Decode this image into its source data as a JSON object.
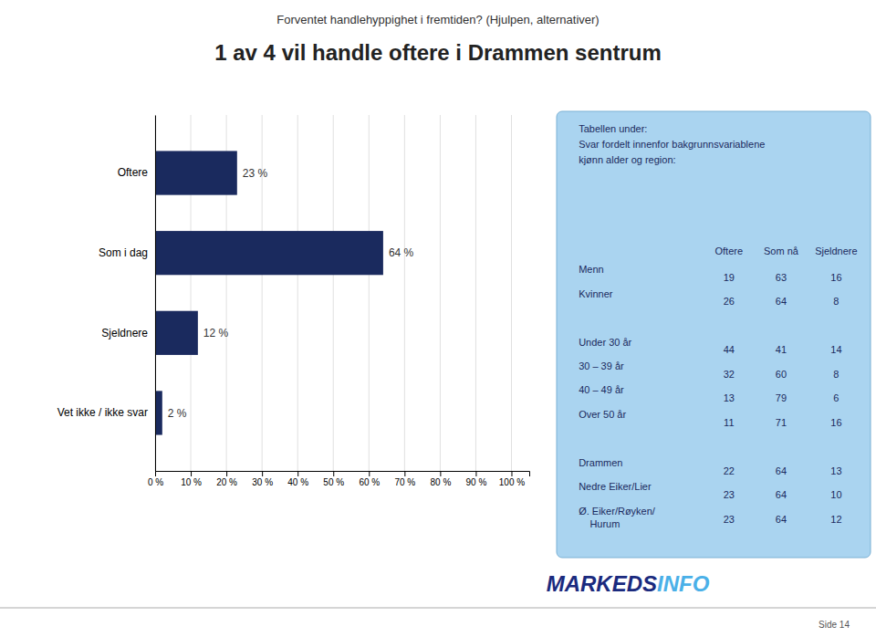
{
  "chart_data": [
    {
      "type": "bar",
      "title": "1 av 4 vil handle oftere i Drammen sentrum",
      "subtitle": "Forventet handlehyppighet i fremtiden? (Hjulpen, alternativer)",
      "orientation": "horizontal",
      "categories": [
        "Oftere",
        "Som i dag",
        "Sjeldnere",
        "Vet ikke / ikke svar"
      ],
      "values": [
        23,
        64,
        12,
        2
      ],
      "value_labels": [
        "23 %",
        "64 %",
        "12 %",
        "2 %"
      ],
      "data_labels": true,
      "color": "#1a2a5e",
      "xlim": [
        0,
        105
      ],
      "xticks": [
        {
          "value": 0,
          "label": "0 %"
        },
        {
          "value": 10,
          "label": "10 %"
        },
        {
          "value": 20,
          "label": "20 %"
        },
        {
          "value": 30,
          "label": "30 %"
        },
        {
          "value": 40,
          "label": "40 %"
        },
        {
          "value": 50,
          "label": "50 %"
        },
        {
          "value": 60,
          "label": "60 %"
        },
        {
          "value": 70,
          "label": "70 %"
        },
        {
          "value": 80,
          "label": "80 %"
        },
        {
          "value": 90,
          "label": "90 %"
        },
        {
          "value": 100,
          "label": "100 %"
        }
      ],
      "grid": true,
      "annotations": [
        {
          "text": "MARKEDS",
          "color": "#1a2a7e"
        },
        {
          "text": "INFO",
          "color": "#4ab0e8"
        },
        {
          "text": "Side 14"
        }
      ]
    },
    {
      "type": "table",
      "title": "Tabellen under:\nSvar fordelt innenfor bakgrunnsvariablene\nkjønn alder og region:",
      "color": "#aad4f0",
      "columns": [
        "Oftere",
        "Som nå",
        "Sjeldnere"
      ],
      "row_groups": [
        [
          {
            "label": "Menn",
            "values": [
              19,
              63,
              16
            ]
          },
          {
            "label": "Kvinner",
            "values": [
              26,
              64,
              8
            ]
          }
        ],
        [
          {
            "label": "Under 30 år",
            "values": [
              44,
              41,
              14
            ]
          },
          {
            "label": "30 – 39 år",
            "values": [
              32,
              60,
              8
            ]
          },
          {
            "label": "40 – 49 år",
            "values": [
              13,
              79,
              6
            ]
          },
          {
            "label": "Over 50 år",
            "values": [
              11,
              71,
              16
            ]
          }
        ],
        [
          {
            "label": "Drammen",
            "values": [
              22,
              64,
              13
            ]
          },
          {
            "label": "Nedre Eiker/Lier",
            "values": [
              23,
              64,
              10
            ]
          },
          {
            "label": "Ø. Eiker/Røyken/\n    Hurum",
            "values": [
              23,
              64,
              12
            ]
          }
        ]
      ]
    }
  ]
}
